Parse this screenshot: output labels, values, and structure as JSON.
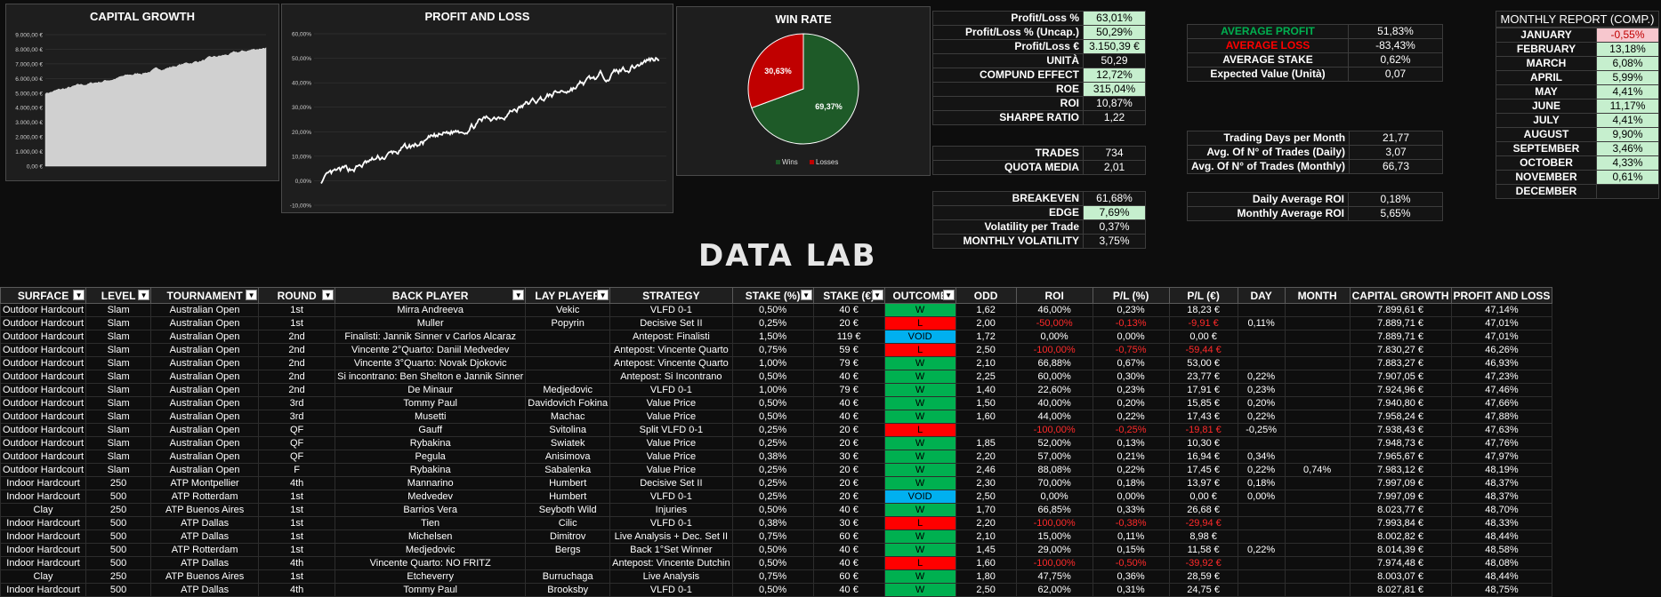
{
  "charts": {
    "capital_growth": {
      "title": "CAPITAL GROWTH"
    },
    "profit_loss": {
      "title": "PROFIT AND LOSS"
    },
    "win_rate": {
      "title": "WIN RATE"
    }
  },
  "chart_data": [
    {
      "type": "area",
      "title": "CAPITAL GROWTH",
      "y_ticks": [
        "9.000,00 €",
        "8.000,00 €",
        "7.000,00 €",
        "6.000,00 €",
        "5.000,00 €",
        "4.000,00 €",
        "3.000,00 €",
        "2.000,00 €",
        "1.000,00 €",
        "0,00 €"
      ],
      "ylim": [
        0,
        9000
      ],
      "start_value": 5000,
      "end_value": 8150,
      "color": "#d0d0d0"
    },
    {
      "type": "line",
      "title": "PROFIT AND LOSS",
      "y_ticks": [
        "60,00%",
        "50,00%",
        "40,00%",
        "30,00%",
        "20,00%",
        "10,00%",
        "0,00%",
        "-10,00%"
      ],
      "ylim": [
        -10,
        60
      ],
      "start_value": 0,
      "end_value": 51,
      "color": "#ffffff"
    },
    {
      "type": "pie",
      "title": "WIN RATE",
      "slices": [
        {
          "name": "Wins",
          "value": 69.37,
          "label": "69,37%",
          "color": "#1e5a28"
        },
        {
          "name": "Losses",
          "value": 30.63,
          "label": "30,63%",
          "color": "#c00000"
        }
      ],
      "legend": "bottom"
    }
  ],
  "kpi1": [
    {
      "label": "Profit/Loss %",
      "value": "63,01%",
      "hl": "g"
    },
    {
      "label": "Profit/Loss % (Uncap.)",
      "value": "50,29%",
      "hl": "g"
    },
    {
      "label": "Profit/Loss €",
      "value": "3.150,39 €",
      "hl": "g"
    },
    {
      "label": "UNITÀ",
      "value": "50,29",
      "hl": ""
    },
    {
      "label": "COMPUND EFFECT",
      "value": "12,72%",
      "hl": "g"
    },
    {
      "label": "ROE",
      "value": "315,04%",
      "hl": "g"
    },
    {
      "label": "ROI",
      "value": "10,87%",
      "hl": ""
    },
    {
      "label": "SHARPE RATIO",
      "value": "1,22",
      "hl": ""
    }
  ],
  "kpi2": [
    {
      "label": "TRADES",
      "value": "734"
    },
    {
      "label": "QUOTA MEDIA",
      "value": "2,01"
    }
  ],
  "kpi3": [
    {
      "label": "BREAKEVEN",
      "value": "61,68%",
      "hl": ""
    },
    {
      "label": "EDGE",
      "value": "7,69%",
      "hl": "g"
    },
    {
      "label": "Volatility per Trade",
      "value": "0,37%",
      "hl": ""
    },
    {
      "label": "MONTHLY VOLATILITY",
      "value": "3,75%",
      "hl": ""
    }
  ],
  "kpi4": [
    {
      "label": "AVERAGE PROFIT",
      "value": "51,83%",
      "color": "#00b050"
    },
    {
      "label": "AVERAGE LOSS",
      "value": "-83,43%",
      "color": "#ff0000"
    },
    {
      "label": "AVERAGE STAKE",
      "value": "0,62%",
      "color": ""
    },
    {
      "label": "Expected Value (Unità)",
      "value": "0,07",
      "color": ""
    }
  ],
  "kpi5": [
    {
      "label": "Trading Days per Month",
      "value": "21,77"
    },
    {
      "label": "Avg. Of N° of Trades (Daily)",
      "value": "3,07"
    },
    {
      "label": "Avg. Of N° of Trades (Monthly)",
      "value": "66,73"
    }
  ],
  "kpi6": [
    {
      "label": "Daily Average ROI",
      "value": "0,18%"
    },
    {
      "label": "Monthly Average ROI",
      "value": "5,65%"
    }
  ],
  "monthly": {
    "title": "MONTHLY REPORT (COMP.)",
    "rows": [
      {
        "month": "JANUARY",
        "value": "-0,55%",
        "hl": "r"
      },
      {
        "month": "FEBRUARY",
        "value": "13,18%",
        "hl": "g"
      },
      {
        "month": "MARCH",
        "value": "6,08%",
        "hl": "g"
      },
      {
        "month": "APRIL",
        "value": "5,99%",
        "hl": "g"
      },
      {
        "month": "MAY",
        "value": "4,41%",
        "hl": "g"
      },
      {
        "month": "JUNE",
        "value": "11,17%",
        "hl": "g"
      },
      {
        "month": "JULY",
        "value": "4,41%",
        "hl": "g"
      },
      {
        "month": "AUGUST",
        "value": "9,90%",
        "hl": "g"
      },
      {
        "month": "SEPTEMBER",
        "value": "3,46%",
        "hl": "g"
      },
      {
        "month": "OCTOBER",
        "value": "4,33%",
        "hl": "g"
      },
      {
        "month": "NOVEMBER",
        "value": "0,61%",
        "hl": "g"
      },
      {
        "month": "DECEMBER",
        "value": "",
        "hl": ""
      }
    ]
  },
  "logo": "DATA LAB",
  "table": {
    "columns": [
      "SURFACE",
      "LEVEL",
      "TOURNAMENT",
      "ROUND",
      "BACK PLAYER",
      "LAY PLAYER",
      "STRATEGY",
      "STAKE (%)",
      "STAKE (€)",
      "OUTCOME",
      "ODD",
      "ROI",
      "P/L (%)",
      "P/L (€)",
      "DAY",
      "MONTH",
      "CAPITAL GROWTH",
      "PROFIT AND LOSS"
    ],
    "rows": [
      [
        "Outdoor Hardcourt",
        "Slam",
        "Australian Open",
        "1st",
        "Mirra Andreeva",
        "Vekic",
        "VLFD 0-1",
        "0,50%",
        "40 €",
        "W",
        "1,62",
        "46,00%",
        "0,23%",
        "18,23 €",
        "",
        "",
        "7.899,61 €",
        "47,14%"
      ],
      [
        "Outdoor Hardcourt",
        "Slam",
        "Australian Open",
        "1st",
        "Muller",
        "Popyrin",
        "Decisive Set II",
        "0,25%",
        "20 €",
        "L",
        "2,00",
        "-50,00%",
        "-0,13%",
        "-9,91 €",
        "0,11%",
        "",
        "7.889,71 €",
        "47,01%"
      ],
      [
        "Outdoor Hardcourt",
        "Slam",
        "Australian Open",
        "2nd",
        "Finalisti: Jannik Sinner v Carlos Alcaraz",
        "",
        "Antepost: Finalisti",
        "1,50%",
        "119 €",
        "VOID",
        "1,72",
        "0,00%",
        "0,00%",
        "0,00 €",
        "",
        "",
        "7.889,71 €",
        "47,01%"
      ],
      [
        "Outdoor Hardcourt",
        "Slam",
        "Australian Open",
        "2nd",
        "Vincente 2°Quarto: Daniil Medvedev",
        "",
        "Antepost: Vincente Quarto",
        "0,75%",
        "59 €",
        "L",
        "2,50",
        "-100,00%",
        "-0,75%",
        "-59,44 €",
        "",
        "",
        "7.830,27 €",
        "46,26%"
      ],
      [
        "Outdoor Hardcourt",
        "Slam",
        "Australian Open",
        "2nd",
        "Vincente 3°Quarto: Novak Djokovic",
        "",
        "Antepost: Vincente Quarto",
        "1,00%",
        "79 €",
        "W",
        "2,10",
        "66,88%",
        "0,67%",
        "53,00 €",
        "",
        "",
        "7.883,27 €",
        "46,93%"
      ],
      [
        "Outdoor Hardcourt",
        "Slam",
        "Australian Open",
        "2nd",
        "Si incontrano: Ben Shelton e Jannik Sinner",
        "",
        "Antepost: Si Incontrano",
        "0,50%",
        "40 €",
        "W",
        "2,25",
        "60,00%",
        "0,30%",
        "23,77 €",
        "0,22%",
        "",
        "7.907,05 €",
        "47,23%"
      ],
      [
        "Outdoor Hardcourt",
        "Slam",
        "Australian Open",
        "2nd",
        "De Minaur",
        "Medjedovic",
        "VLFD 0-1",
        "1,00%",
        "79 €",
        "W",
        "1,40",
        "22,60%",
        "0,23%",
        "17,91 €",
        "0,23%",
        "",
        "7.924,96 €",
        "47,46%"
      ],
      [
        "Outdoor Hardcourt",
        "Slam",
        "Australian Open",
        "3rd",
        "Tommy Paul",
        "Davidovich Fokina",
        "Value Price",
        "0,50%",
        "40 €",
        "W",
        "1,50",
        "40,00%",
        "0,20%",
        "15,85 €",
        "0,20%",
        "",
        "7.940,80 €",
        "47,66%"
      ],
      [
        "Outdoor Hardcourt",
        "Slam",
        "Australian Open",
        "3rd",
        "Musetti",
        "Machac",
        "Value Price",
        "0,50%",
        "40 €",
        "W",
        "1,60",
        "44,00%",
        "0,22%",
        "17,43 €",
        "0,22%",
        "",
        "7.958,24 €",
        "47,88%"
      ],
      [
        "Outdoor Hardcourt",
        "Slam",
        "Australian Open",
        "QF",
        "Gauff",
        "Svitolina",
        "Split VLFD 0-1",
        "0,25%",
        "20 €",
        "L",
        "",
        "-100,00%",
        "-0,25%",
        "-19,81 €",
        "-0,25%",
        "",
        "7.938,43 €",
        "47,63%"
      ],
      [
        "Outdoor Hardcourt",
        "Slam",
        "Australian Open",
        "QF",
        "Rybakina",
        "Swiatek",
        "Value Price",
        "0,25%",
        "20 €",
        "W",
        "1,85",
        "52,00%",
        "0,13%",
        "10,30 €",
        "",
        "",
        "7.948,73 €",
        "47,76%"
      ],
      [
        "Outdoor Hardcourt",
        "Slam",
        "Australian Open",
        "QF",
        "Pegula",
        "Anisimova",
        "Value Price",
        "0,38%",
        "30 €",
        "W",
        "2,20",
        "57,00%",
        "0,21%",
        "16,94 €",
        "0,34%",
        "",
        "7.965,67 €",
        "47,97%"
      ],
      [
        "Outdoor Hardcourt",
        "Slam",
        "Australian Open",
        "F",
        "Rybakina",
        "Sabalenka",
        "Value Price",
        "0,25%",
        "20 €",
        "W",
        "2,46",
        "88,08%",
        "0,22%",
        "17,45 €",
        "0,22%",
        "0,74%",
        "7.983,12 €",
        "48,19%"
      ],
      [
        "Indoor Hardcourt",
        "250",
        "ATP Montpellier",
        "4th",
        "Mannarino",
        "Humbert",
        "Decisive Set II",
        "0,25%",
        "20 €",
        "W",
        "2,30",
        "70,00%",
        "0,18%",
        "13,97 €",
        "0,18%",
        "",
        "7.997,09 €",
        "48,37%"
      ],
      [
        "Indoor Hardcourt",
        "500",
        "ATP Rotterdam",
        "1st",
        "Medvedev",
        "Humbert",
        "VLFD 0-1",
        "0,25%",
        "20 €",
        "VOID",
        "2,50",
        "0,00%",
        "0,00%",
        "0,00 €",
        "0,00%",
        "",
        "7.997,09 €",
        "48,37%"
      ],
      [
        "Clay",
        "250",
        "ATP Buenos Aires",
        "1st",
        "Barrios Vera",
        "Seyboth Wild",
        "Injuries",
        "0,50%",
        "40 €",
        "W",
        "1,70",
        "66,85%",
        "0,33%",
        "26,68 €",
        "",
        "",
        "8.023,77 €",
        "48,70%"
      ],
      [
        "Indoor Hardcourt",
        "500",
        "ATP Dallas",
        "1st",
        "Tien",
        "Cilic",
        "VLFD 0-1",
        "0,38%",
        "30 €",
        "L",
        "2,20",
        "-100,00%",
        "-0,38%",
        "-29,94 €",
        "",
        "",
        "7.993,84 €",
        "48,33%"
      ],
      [
        "Indoor Hardcourt",
        "500",
        "ATP Dallas",
        "1st",
        "Michelsen",
        "Dimitrov",
        "Live Analysis + Dec. Set II",
        "0,75%",
        "60 €",
        "W",
        "2,10",
        "15,00%",
        "0,11%",
        "8,98 €",
        "",
        "",
        "8.002,82 €",
        "48,44%"
      ],
      [
        "Indoor Hardcourt",
        "500",
        "ATP Rotterdam",
        "1st",
        "Medjedovic",
        "Bergs",
        "Back 1°Set Winner",
        "0,50%",
        "40 €",
        "W",
        "1,45",
        "29,00%",
        "0,15%",
        "11,58 €",
        "0,22%",
        "",
        "8.014,39 €",
        "48,58%"
      ],
      [
        "Indoor Hardcourt",
        "500",
        "ATP Dallas",
        "4th",
        "Vincente Quarto: NO FRITZ",
        "",
        "Antepost: Vincente Dutchin",
        "0,50%",
        "40 €",
        "L",
        "1,60",
        "-100,00%",
        "-0,50%",
        "-39,92 €",
        "",
        "",
        "7.974,48 €",
        "48,08%"
      ],
      [
        "Clay",
        "250",
        "ATP Buenos Aires",
        "1st",
        "Etcheverry",
        "Burruchaga",
        "Live Analysis",
        "0,75%",
        "60 €",
        "W",
        "1,80",
        "47,75%",
        "0,36%",
        "28,59 €",
        "",
        "",
        "8.003,07 €",
        "48,44%"
      ],
      [
        "Indoor Hardcourt",
        "500",
        "ATP Dallas",
        "4th",
        "Tommy Paul",
        "Brooksby",
        "VLFD 0-1",
        "0,50%",
        "40 €",
        "W",
        "2,50",
        "62,00%",
        "0,31%",
        "24,75 €",
        "",
        "",
        "8.027,81 €",
        "48,75%"
      ]
    ]
  }
}
